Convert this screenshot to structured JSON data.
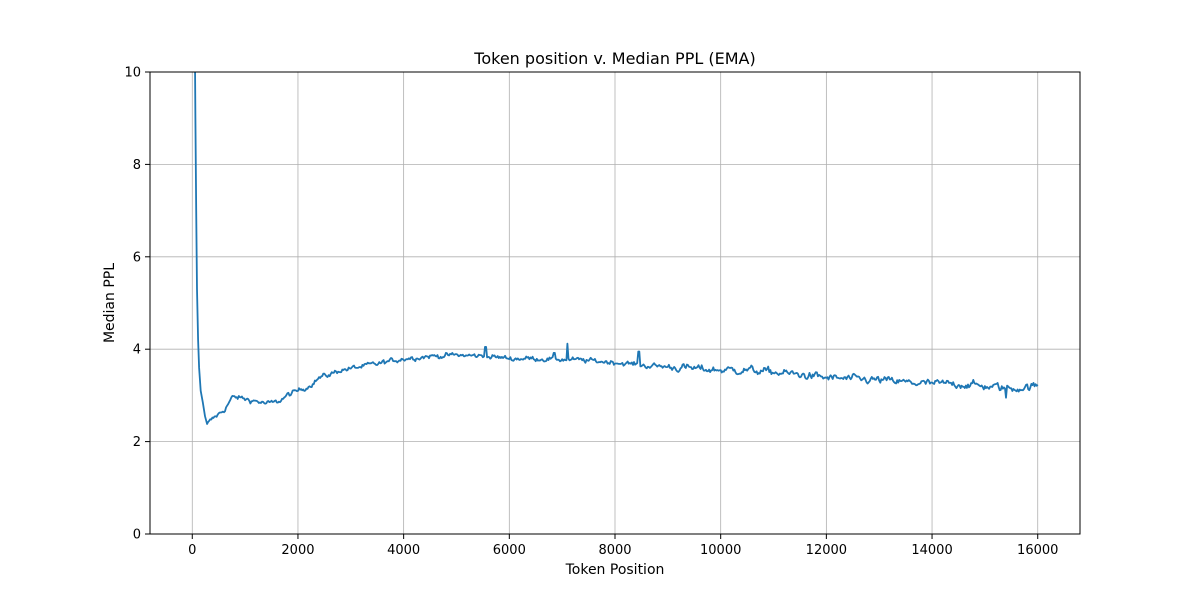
{
  "chart_data": {
    "type": "line",
    "title": "Token position v. Median PPL (EMA)",
    "xlabel": "Token Position",
    "ylabel": "Median PPL",
    "xlim": [
      -800,
      16800
    ],
    "ylim": [
      0,
      10
    ],
    "xticks": [
      0,
      2000,
      4000,
      6000,
      8000,
      10000,
      12000,
      14000,
      16000
    ],
    "yticks": [
      0,
      2,
      4,
      6,
      8,
      10
    ],
    "grid": true,
    "series": [
      {
        "name": "Median PPL (EMA)",
        "color": "#1f77b4",
        "anchors": [
          [
            50,
            10.5
          ],
          [
            60,
            9.0
          ],
          [
            75,
            7.0
          ],
          [
            90,
            5.3
          ],
          [
            110,
            4.2
          ],
          [
            130,
            3.6
          ],
          [
            160,
            3.1
          ],
          [
            200,
            2.85
          ],
          [
            240,
            2.55
          ],
          [
            280,
            2.38
          ],
          [
            350,
            2.45
          ],
          [
            450,
            2.55
          ],
          [
            600,
            2.68
          ],
          [
            750,
            2.95
          ],
          [
            900,
            2.95
          ],
          [
            1000,
            2.92
          ],
          [
            1200,
            2.88
          ],
          [
            1400,
            2.82
          ],
          [
            1600,
            2.85
          ],
          [
            1800,
            3.0
          ],
          [
            2000,
            3.1
          ],
          [
            2200,
            3.2
          ],
          [
            2400,
            3.38
          ],
          [
            2600,
            3.45
          ],
          [
            2800,
            3.55
          ],
          [
            3000,
            3.58
          ],
          [
            3500,
            3.68
          ],
          [
            4000,
            3.8
          ],
          [
            4500,
            3.85
          ],
          [
            5000,
            3.87
          ],
          [
            5500,
            3.85
          ],
          [
            6000,
            3.8
          ],
          [
            6500,
            3.8
          ],
          [
            7000,
            3.78
          ],
          [
            7500,
            3.75
          ],
          [
            8000,
            3.72
          ],
          [
            8500,
            3.65
          ],
          [
            9000,
            3.62
          ],
          [
            9500,
            3.58
          ],
          [
            10000,
            3.55
          ],
          [
            10500,
            3.55
          ],
          [
            11000,
            3.5
          ],
          [
            11500,
            3.45
          ],
          [
            12000,
            3.38
          ],
          [
            12500,
            3.35
          ],
          [
            13000,
            3.33
          ],
          [
            13500,
            3.28
          ],
          [
            14000,
            3.25
          ],
          [
            14500,
            3.25
          ],
          [
            15000,
            3.2
          ],
          [
            15500,
            3.15
          ],
          [
            16000,
            3.2
          ]
        ],
        "noise_sd": 0.06,
        "spikes": [
          [
            5550,
            4.05
          ],
          [
            7100,
            4.12
          ],
          [
            6850,
            3.92
          ],
          [
            8450,
            3.95
          ],
          [
            15400,
            2.95
          ]
        ]
      }
    ]
  }
}
